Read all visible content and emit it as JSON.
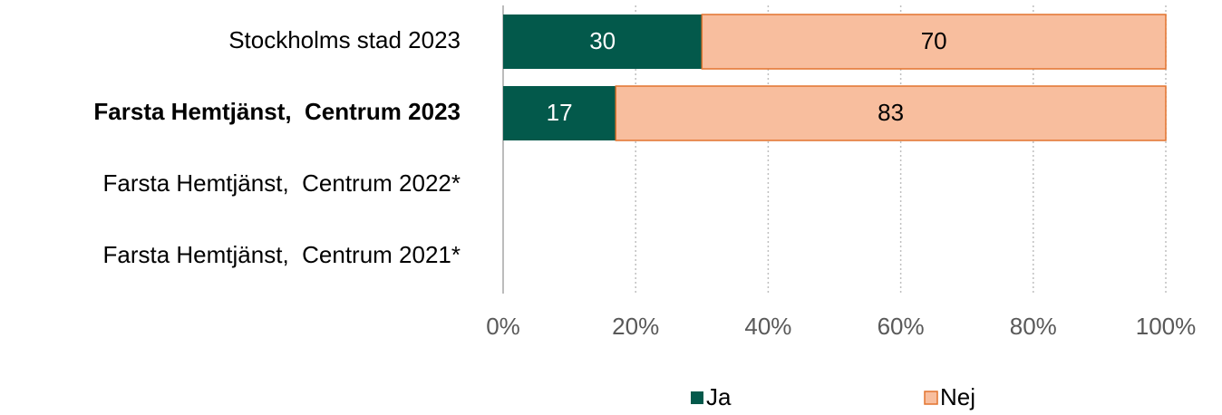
{
  "chart_data": {
    "type": "stacked-bar-horizontal",
    "categories": [
      "Stockholms stad 2023",
      "Farsta Hemtjänst,  Centrum 2023",
      "Farsta Hemtjänst,  Centrum 2022*",
      "Farsta Hemtjänst,  Centrum 2021*"
    ],
    "highlight": 1,
    "series": [
      {
        "name": "Ja",
        "color": "#03594b",
        "label_color": "#ffffff",
        "values": [
          30,
          17,
          null,
          null
        ]
      },
      {
        "name": "Nej",
        "color": "#f8be9e",
        "edge_color": "#e2742f",
        "label_color": "#000000",
        "values": [
          70,
          83,
          null,
          null
        ]
      }
    ],
    "xlim": [
      0,
      100
    ],
    "xticks": [
      {
        "value": 0,
        "label": "0%"
      },
      {
        "value": 20,
        "label": "20%"
      },
      {
        "value": 40,
        "label": "40%"
      },
      {
        "value": 60,
        "label": "60%"
      },
      {
        "value": 80,
        "label": "80%"
      },
      {
        "value": 100,
        "label": "100%"
      }
    ],
    "grid": true,
    "legend": "bottom"
  }
}
